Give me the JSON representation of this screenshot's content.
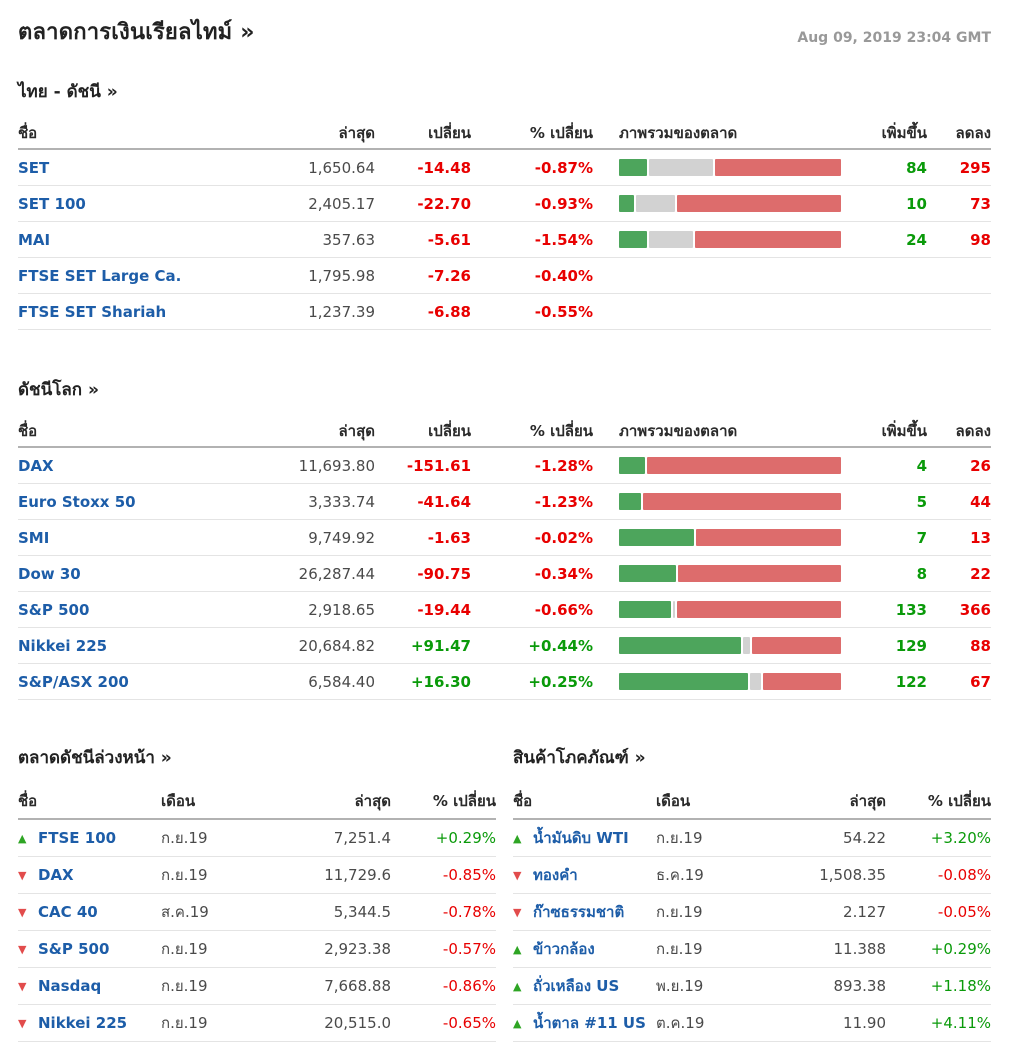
{
  "header": {
    "title": "ตลาดการเงินเรียลไทม์ »",
    "timestamp": "Aug 09, 2019 23:04 GMT"
  },
  "colors": {
    "link_blue": "#1d5da8",
    "text_red": "#e80000",
    "text_green": "#0a9a0a",
    "bar_green": "#4da55c",
    "bar_gray": "#d2d2d2",
    "bar_red": "#dd6c6c",
    "timestamp_gray": "#999999"
  },
  "index_columns": {
    "name": "ชื่อ",
    "last": "ล่าสุด",
    "change": "เปลี่ยน",
    "pct": "% เปลี่ยน",
    "overview": "ภาพรวมของตลาด",
    "adv": "เพิ่มขึ้น",
    "dec": "ลดลง"
  },
  "index_tables": [
    {
      "id": "thai-indices",
      "title": "ไทย - ดัชนี  »",
      "rows": [
        {
          "name": "SET",
          "last": "1,650.64",
          "change": "-14.48",
          "pct": "-0.87%",
          "dir": "down",
          "bar": {
            "green": 13,
            "gray": 29,
            "red": 58
          },
          "adv": "84",
          "dec": "295"
        },
        {
          "name": "SET 100",
          "last": "2,405.17",
          "change": "-22.70",
          "pct": "-0.93%",
          "dir": "down",
          "bar": {
            "green": 7,
            "gray": 18,
            "red": 75
          },
          "adv": "10",
          "dec": "73"
        },
        {
          "name": "MAI",
          "last": "357.63",
          "change": "-5.61",
          "pct": "-1.54%",
          "dir": "down",
          "bar": {
            "green": 13,
            "gray": 20,
            "red": 67
          },
          "adv": "24",
          "dec": "98"
        },
        {
          "name": "FTSE SET Large Ca.",
          "last": "1,795.98",
          "change": "-7.26",
          "pct": "-0.40%",
          "dir": "down",
          "bar": null,
          "adv": "",
          "dec": ""
        },
        {
          "name": "FTSE SET Shariah",
          "last": "1,237.39",
          "change": "-6.88",
          "pct": "-0.55%",
          "dir": "down",
          "bar": null,
          "adv": "",
          "dec": ""
        }
      ]
    },
    {
      "id": "world-indices",
      "title": "ดัชนีโลก »",
      "rows": [
        {
          "name": "DAX",
          "last": "11,693.80",
          "change": "-151.61",
          "pct": "-1.28%",
          "dir": "down",
          "bar": {
            "green": 12,
            "gray": 0,
            "red": 88
          },
          "adv": "4",
          "dec": "26"
        },
        {
          "name": "Euro Stoxx 50",
          "last": "3,333.74",
          "change": "-41.64",
          "pct": "-1.23%",
          "dir": "down",
          "bar": {
            "green": 10,
            "gray": 0,
            "red": 90
          },
          "adv": "5",
          "dec": "44"
        },
        {
          "name": "SMI",
          "last": "9,749.92",
          "change": "-1.63",
          "pct": "-0.02%",
          "dir": "down",
          "bar": {
            "green": 34,
            "gray": 0,
            "red": 66
          },
          "adv": "7",
          "dec": "13"
        },
        {
          "name": "Dow 30",
          "last": "26,287.44",
          "change": "-90.75",
          "pct": "-0.34%",
          "dir": "down",
          "bar": {
            "green": 26,
            "gray": 0,
            "red": 74
          },
          "adv": "8",
          "dec": "22"
        },
        {
          "name": "S&P 500",
          "last": "2,918.65",
          "change": "-19.44",
          "pct": "-0.66%",
          "dir": "down",
          "bar": {
            "green": 24,
            "gray": 1,
            "red": 75
          },
          "adv": "133",
          "dec": "366"
        },
        {
          "name": "Nikkei 225",
          "last": "20,684.82",
          "change": "+91.47",
          "pct": "+0.44%",
          "dir": "up",
          "bar": {
            "green": 56,
            "gray": 3,
            "red": 41
          },
          "adv": "129",
          "dec": "88"
        },
        {
          "name": "S&P/ASX 200",
          "last": "6,584.40",
          "change": "+16.30",
          "pct": "+0.25%",
          "dir": "up",
          "bar": {
            "green": 59,
            "gray": 5,
            "red": 36
          },
          "adv": "122",
          "dec": "67"
        }
      ]
    }
  ],
  "futures_columns": {
    "name": "ชื่อ",
    "month": "เดือน",
    "last": "ล่าสุด",
    "pct": "% เปลี่ยน"
  },
  "futures_tables": [
    {
      "id": "index-futures",
      "title": "ตลาดดัชนีล่วงหน้า »",
      "rows": [
        {
          "dir": "up",
          "name": "FTSE 100",
          "month": "ก.ย.19",
          "last": "7,251.4",
          "pct": "+0.29%"
        },
        {
          "dir": "down",
          "name": "DAX",
          "month": "ก.ย.19",
          "last": "11,729.6",
          "pct": "-0.85%"
        },
        {
          "dir": "down",
          "name": "CAC 40",
          "month": "ส.ค.19",
          "last": "5,344.5",
          "pct": "-0.78%"
        },
        {
          "dir": "down",
          "name": "S&P 500",
          "month": "ก.ย.19",
          "last": "2,923.38",
          "pct": "-0.57%"
        },
        {
          "dir": "down",
          "name": "Nasdaq",
          "month": "ก.ย.19",
          "last": "7,668.88",
          "pct": "-0.86%"
        },
        {
          "dir": "down",
          "name": "Nikkei 225",
          "month": "ก.ย.19",
          "last": "20,515.0",
          "pct": "-0.65%"
        }
      ]
    },
    {
      "id": "commodities",
      "title": "สินค้าโภคภัณฑ์ »",
      "rows": [
        {
          "dir": "up",
          "name": "น้ำมันดิบ WTI",
          "month": "ก.ย.19",
          "last": "54.22",
          "pct": "+3.20%"
        },
        {
          "dir": "down",
          "name": "ทองคำ",
          "month": "ธ.ค.19",
          "last": "1,508.35",
          "pct": "-0.08%"
        },
        {
          "dir": "down",
          "name": "ก๊าซธรรมชาติ",
          "month": "ก.ย.19",
          "last": "2.127",
          "pct": "-0.05%"
        },
        {
          "dir": "up",
          "name": "ข้าวกล้อง",
          "month": "ก.ย.19",
          "last": "11.388",
          "pct": "+0.29%"
        },
        {
          "dir": "up",
          "name": "ถั่วเหลือง US",
          "month": "พ.ย.19",
          "last": "893.38",
          "pct": "+1.18%"
        },
        {
          "dir": "up",
          "name": "น้ำตาล #11 US",
          "month": "ต.ค.19",
          "last": "11.90",
          "pct": "+4.11%"
        }
      ]
    }
  ],
  "icons": {
    "up_arrow": "▲",
    "down_arrow": "▼"
  }
}
